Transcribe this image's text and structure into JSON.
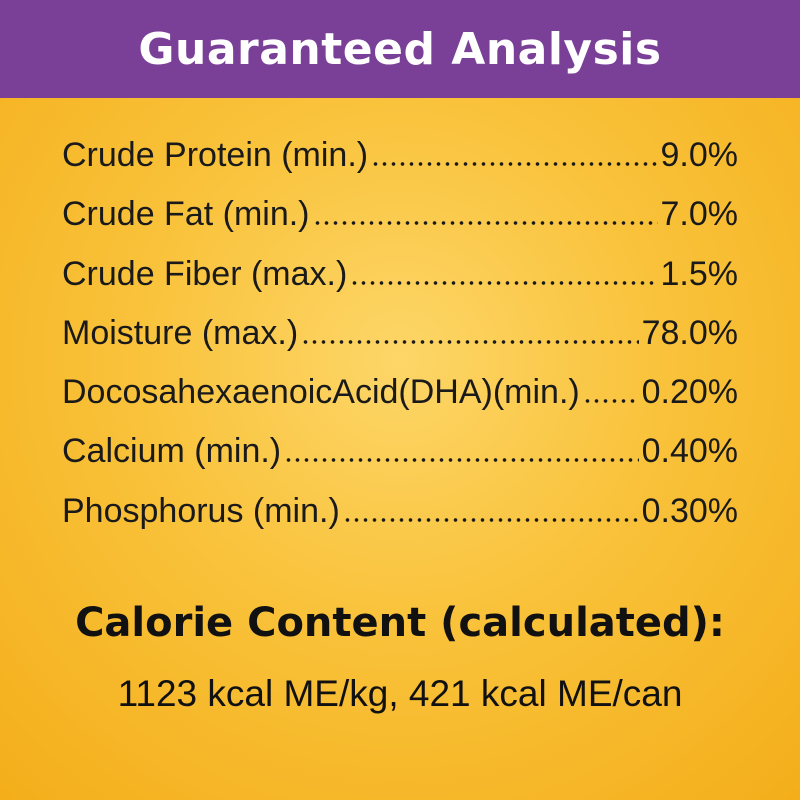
{
  "header": {
    "title": "Guaranteed Analysis"
  },
  "table": {
    "rows": [
      [
        "Crude Protein (min.)",
        "9.0%"
      ],
      [
        "Crude Fat (min.)",
        "7.0%"
      ],
      [
        "Crude Fiber (max.)",
        "1.5%"
      ],
      [
        "Moisture (max.)",
        "78.0%"
      ],
      [
        "DocosahexaenoicAcid(DHA)(min.)",
        "0.20%"
      ],
      [
        "Calcium (min.)",
        "0.40%"
      ],
      [
        "Phosphorus (min.)",
        "0.30%"
      ]
    ]
  },
  "calories": {
    "title": "Calorie Content (calculated):",
    "text": "1123 kcal ME/kg, 421 kcal ME/can"
  }
}
